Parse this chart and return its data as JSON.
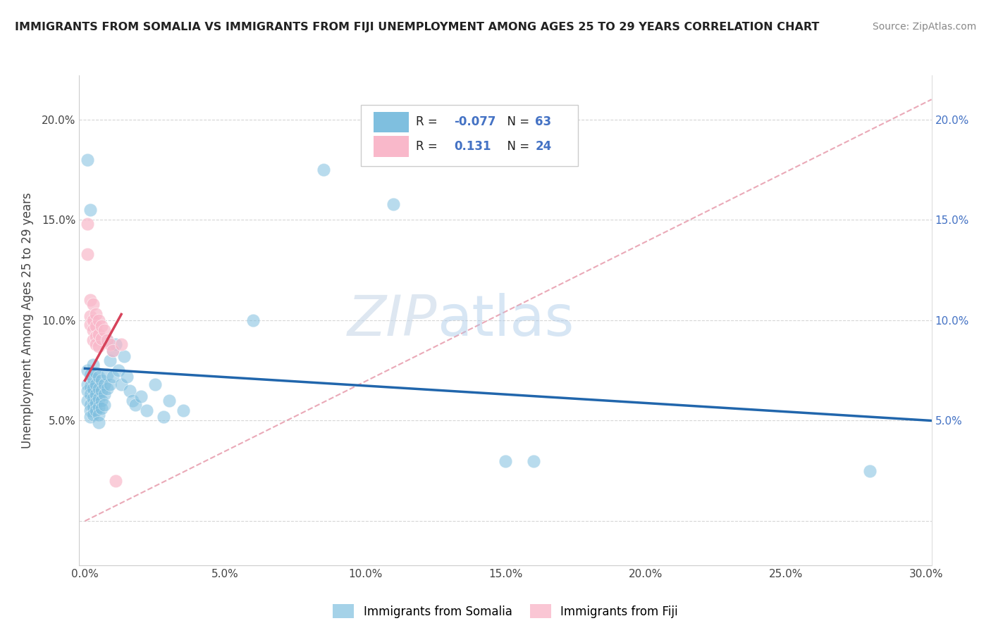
{
  "title": "IMMIGRANTS FROM SOMALIA VS IMMIGRANTS FROM FIJI UNEMPLOYMENT AMONG AGES 25 TO 29 YEARS CORRELATION CHART",
  "source": "Source: ZipAtlas.com",
  "ylabel": "Unemployment Among Ages 25 to 29 years",
  "xlabel_somalia": "Immigrants from Somalia",
  "xlabel_fiji": "Immigrants from Fiji",
  "xlim": [
    -0.002,
    0.302
  ],
  "ylim": [
    -0.022,
    0.222
  ],
  "xticks": [
    0.0,
    0.05,
    0.1,
    0.15,
    0.2,
    0.25,
    0.3
  ],
  "yticks": [
    0.0,
    0.05,
    0.1,
    0.15,
    0.2
  ],
  "xticklabels": [
    "0.0%",
    "5.0%",
    "10.0%",
    "15.0%",
    "20.0%",
    "25.0%",
    "30.0%"
  ],
  "yticklabels": [
    "",
    "5.0%",
    "10.0%",
    "15.0%",
    "20.0%"
  ],
  "right_yticklabels": [
    "5.0%",
    "10.0%",
    "15.0%",
    "20.0%"
  ],
  "somalia_color": "#7fbfdf",
  "fiji_color": "#f9b8ca",
  "somalia_line_color": "#2166ac",
  "fiji_line_color": "#d6425a",
  "diagonal_color": "#e8a0a8",
  "somalia_R": -0.077,
  "somalia_N": 63,
  "fiji_R": 0.131,
  "fiji_N": 24,
  "watermark_zip": "ZIP",
  "watermark_atlas": "atlas",
  "somalia_points": [
    [
      0.001,
      0.075
    ],
    [
      0.001,
      0.068
    ],
    [
      0.001,
      0.065
    ],
    [
      0.001,
      0.06
    ],
    [
      0.002,
      0.073
    ],
    [
      0.002,
      0.067
    ],
    [
      0.002,
      0.063
    ],
    [
      0.002,
      0.058
    ],
    [
      0.002,
      0.055
    ],
    [
      0.002,
      0.052
    ],
    [
      0.003,
      0.078
    ],
    [
      0.003,
      0.071
    ],
    [
      0.003,
      0.066
    ],
    [
      0.003,
      0.061
    ],
    [
      0.003,
      0.057
    ],
    [
      0.003,
      0.053
    ],
    [
      0.004,
      0.074
    ],
    [
      0.004,
      0.068
    ],
    [
      0.004,
      0.063
    ],
    [
      0.004,
      0.059
    ],
    [
      0.004,
      0.055
    ],
    [
      0.005,
      0.072
    ],
    [
      0.005,
      0.066
    ],
    [
      0.005,
      0.061
    ],
    [
      0.005,
      0.057
    ],
    [
      0.005,
      0.053
    ],
    [
      0.005,
      0.049
    ],
    [
      0.006,
      0.07
    ],
    [
      0.006,
      0.065
    ],
    [
      0.006,
      0.06
    ],
    [
      0.006,
      0.056
    ],
    [
      0.007,
      0.068
    ],
    [
      0.007,
      0.063
    ],
    [
      0.007,
      0.058
    ],
    [
      0.008,
      0.09
    ],
    [
      0.008,
      0.073
    ],
    [
      0.008,
      0.066
    ],
    [
      0.009,
      0.08
    ],
    [
      0.009,
      0.068
    ],
    [
      0.01,
      0.085
    ],
    [
      0.01,
      0.072
    ],
    [
      0.011,
      0.088
    ],
    [
      0.012,
      0.075
    ],
    [
      0.013,
      0.068
    ],
    [
      0.014,
      0.082
    ],
    [
      0.015,
      0.072
    ],
    [
      0.016,
      0.065
    ],
    [
      0.017,
      0.06
    ],
    [
      0.018,
      0.058
    ],
    [
      0.02,
      0.062
    ],
    [
      0.022,
      0.055
    ],
    [
      0.025,
      0.068
    ],
    [
      0.028,
      0.052
    ],
    [
      0.03,
      0.06
    ],
    [
      0.035,
      0.055
    ],
    [
      0.06,
      0.1
    ],
    [
      0.085,
      0.175
    ],
    [
      0.11,
      0.158
    ],
    [
      0.15,
      0.03
    ],
    [
      0.16,
      0.03
    ],
    [
      0.28,
      0.025
    ],
    [
      0.001,
      0.18
    ],
    [
      0.002,
      0.155
    ]
  ],
  "fiji_points": [
    [
      0.001,
      0.148
    ],
    [
      0.001,
      0.133
    ],
    [
      0.002,
      0.11
    ],
    [
      0.002,
      0.102
    ],
    [
      0.002,
      0.098
    ],
    [
      0.003,
      0.108
    ],
    [
      0.003,
      0.1
    ],
    [
      0.003,
      0.095
    ],
    [
      0.003,
      0.09
    ],
    [
      0.004,
      0.103
    ],
    [
      0.004,
      0.097
    ],
    [
      0.004,
      0.092
    ],
    [
      0.004,
      0.088
    ],
    [
      0.005,
      0.1
    ],
    [
      0.005,
      0.093
    ],
    [
      0.005,
      0.087
    ],
    [
      0.006,
      0.097
    ],
    [
      0.006,
      0.091
    ],
    [
      0.007,
      0.095
    ],
    [
      0.008,
      0.09
    ],
    [
      0.009,
      0.088
    ],
    [
      0.01,
      0.085
    ],
    [
      0.011,
      0.02
    ],
    [
      0.013,
      0.088
    ]
  ],
  "soma_line_x": [
    0.0,
    0.302
  ],
  "soma_line_y": [
    0.076,
    0.05
  ],
  "fiji_line_x": [
    0.0,
    0.013
  ],
  "fiji_line_y": [
    0.07,
    0.103
  ],
  "diag_line_x": [
    0.0,
    0.302
  ],
  "diag_line_y": [
    0.0,
    0.21
  ]
}
